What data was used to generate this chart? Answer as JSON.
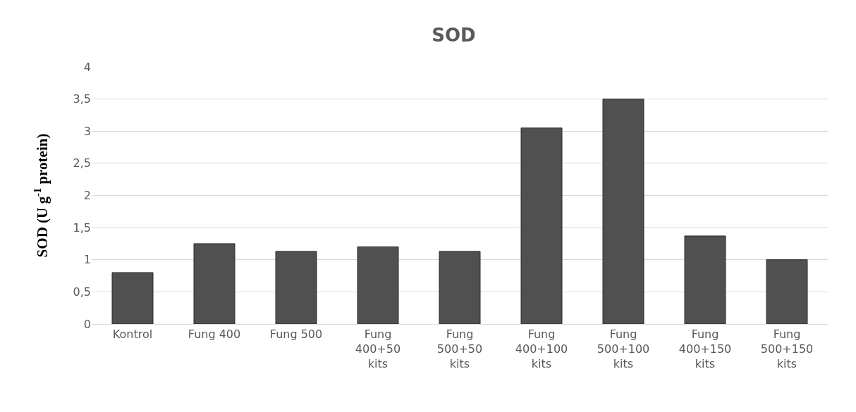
{
  "chart_data": {
    "type": "bar",
    "title": "SOD",
    "ylabel": "SOD (U g$^{-1}$ protein)",
    "categories": [
      "Kontrol",
      "Fung 400",
      "Fung 500",
      "Fung\n400+50\nkits",
      "Fung\n500+50\nkits",
      "Fung\n400+100\nkits",
      "Fung\n500+100\nkits",
      "Fung\n400+150\nkits",
      "Fung\n500+150\nkits"
    ],
    "values": [
      0.8,
      1.25,
      1.13,
      1.2,
      1.13,
      3.05,
      3.5,
      1.37,
      1.0
    ],
    "color": "#505050",
    "ylim": [
      0,
      4
    ],
    "yticks": [
      0,
      {
        "value": 0.5,
        "label": "0,5"
      },
      1,
      {
        "value": 1.5,
        "label": "1,5"
      },
      2,
      {
        "value": 2.5,
        "label": "2,5"
      },
      3,
      {
        "value": 3.5,
        "label": "3,5"
      },
      4
    ],
    "grid": "y",
    "legend": false
  }
}
